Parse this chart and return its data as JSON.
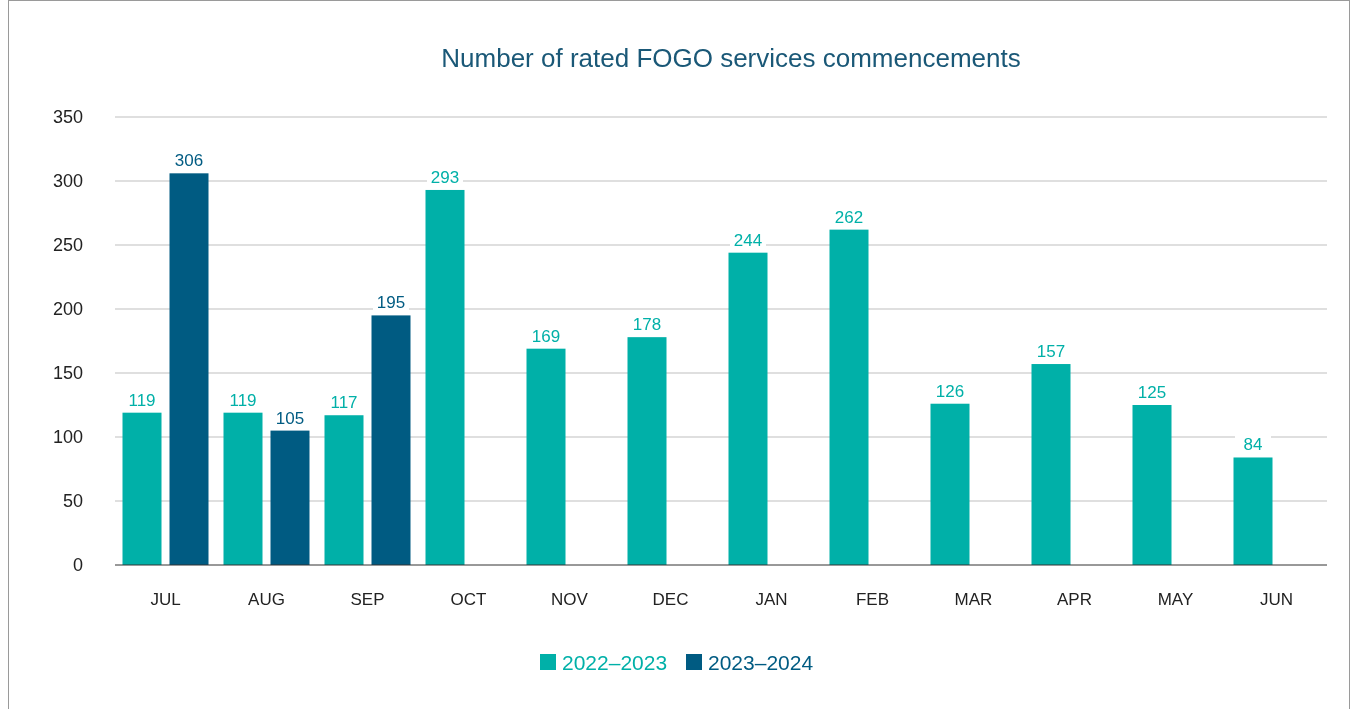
{
  "chart_data": {
    "type": "bar",
    "title": "Number of rated FOGO services commencements",
    "categories": [
      "JUL",
      "AUG",
      "SEP",
      "OCT",
      "NOV",
      "DEC",
      "JAN",
      "FEB",
      "MAR",
      "APR",
      "MAY",
      "JUN"
    ],
    "series": [
      {
        "name": "2022–2023",
        "color": "#00b0a8",
        "values": [
          119,
          119,
          117,
          293,
          169,
          178,
          244,
          262,
          126,
          157,
          125,
          84
        ]
      },
      {
        "name": "2023–2024",
        "color": "#005b82",
        "values": [
          306,
          105,
          195,
          null,
          null,
          null,
          null,
          null,
          null,
          null,
          null,
          null
        ]
      }
    ],
    "ylim": [
      0,
      350
    ],
    "yticks": [
      0,
      50,
      100,
      150,
      200,
      250,
      300,
      350
    ],
    "grid": "y",
    "legend": "bottom",
    "data_labels": true
  }
}
